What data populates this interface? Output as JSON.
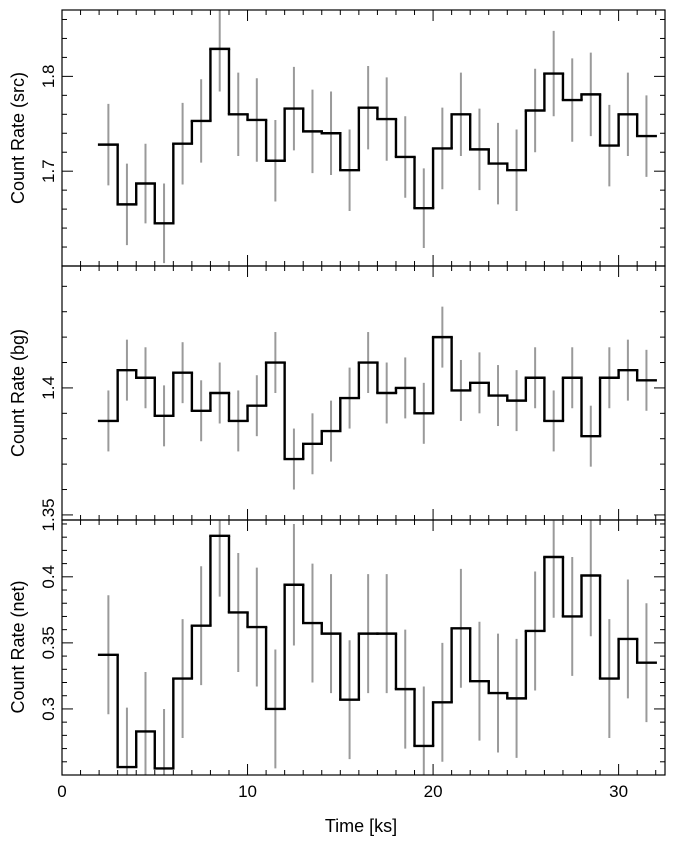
{
  "figure": {
    "xlabel": "Time [ks]"
  },
  "chart_data": [
    {
      "type": "line",
      "id": "src",
      "ylabel": "Count Rate (src)",
      "xlim": [
        0,
        32.5
      ],
      "ylim": [
        1.6,
        1.87
      ],
      "xticks": [
        0,
        10,
        20,
        30
      ],
      "yticks": [
        1.7,
        1.8
      ],
      "ytick_labels": [
        "1.7",
        "1.8"
      ],
      "bin_width": 1.0,
      "x": [
        2.5,
        3.5,
        4.5,
        5.5,
        6.5,
        7.5,
        8.5,
        9.5,
        10.5,
        11.5,
        12.5,
        13.5,
        14.5,
        15.5,
        16.5,
        17.5,
        18.5,
        19.5,
        20.5,
        21.5,
        22.5,
        23.5,
        24.5,
        25.5,
        26.5,
        27.5,
        28.5,
        29.5,
        30.5,
        31.5
      ],
      "y": [
        1.728,
        1.665,
        1.687,
        1.645,
        1.729,
        1.753,
        1.829,
        1.76,
        1.754,
        1.711,
        1.766,
        1.742,
        1.74,
        1.701,
        1.767,
        1.755,
        1.715,
        1.661,
        1.724,
        1.76,
        1.723,
        1.708,
        1.701,
        1.764,
        1.803,
        1.775,
        1.781,
        1.727,
        1.76,
        1.737
      ],
      "err": [
        0.043,
        0.043,
        0.042,
        0.042,
        0.043,
        0.044,
        0.045,
        0.044,
        0.044,
        0.043,
        0.044,
        0.044,
        0.044,
        0.043,
        0.044,
        0.044,
        0.043,
        0.042,
        0.043,
        0.044,
        0.043,
        0.043,
        0.043,
        0.044,
        0.045,
        0.044,
        0.044,
        0.043,
        0.044,
        0.043
      ]
    },
    {
      "type": "line",
      "id": "bg",
      "ylabel": "Count Rate (bg)",
      "xlim": [
        0,
        32.5
      ],
      "ylim": [
        1.348,
        1.448
      ],
      "xticks": [
        0,
        10,
        20,
        30
      ],
      "yticks": [
        1.35,
        1.4
      ],
      "ytick_labels": [
        "1.35",
        "1.4"
      ],
      "bin_width": 1.0,
      "x": [
        2.5,
        3.5,
        4.5,
        5.5,
        6.5,
        7.5,
        8.5,
        9.5,
        10.5,
        11.5,
        12.5,
        13.5,
        14.5,
        15.5,
        16.5,
        17.5,
        18.5,
        19.5,
        20.5,
        21.5,
        22.5,
        23.5,
        24.5,
        25.5,
        26.5,
        27.5,
        28.5,
        29.5,
        30.5,
        31.5
      ],
      "y": [
        1.387,
        1.407,
        1.404,
        1.389,
        1.406,
        1.391,
        1.398,
        1.387,
        1.393,
        1.41,
        1.372,
        1.378,
        1.383,
        1.396,
        1.41,
        1.398,
        1.4,
        1.39,
        1.42,
        1.399,
        1.402,
        1.397,
        1.395,
        1.404,
        1.387,
        1.404,
        1.381,
        1.404,
        1.407,
        1.403
      ],
      "err": [
        0.012,
        0.012,
        0.012,
        0.012,
        0.012,
        0.012,
        0.012,
        0.012,
        0.012,
        0.012,
        0.012,
        0.012,
        0.012,
        0.012,
        0.012,
        0.012,
        0.012,
        0.012,
        0.012,
        0.012,
        0.012,
        0.012,
        0.012,
        0.012,
        0.012,
        0.012,
        0.012,
        0.012,
        0.012,
        0.012
      ]
    },
    {
      "type": "line",
      "id": "net",
      "ylabel": "Count Rate (net)",
      "xlim": [
        0,
        32.5
      ],
      "ylim": [
        0.25,
        0.443
      ],
      "xticks": [
        0,
        10,
        20,
        30
      ],
      "xtick_labels": [
        "0",
        "10",
        "20",
        "30"
      ],
      "yticks": [
        0.3,
        0.35,
        0.4
      ],
      "ytick_labels": [
        "0.3",
        "0.35",
        "0.4"
      ],
      "bin_width": 1.0,
      "x": [
        2.5,
        3.5,
        4.5,
        5.5,
        6.5,
        7.5,
        8.5,
        9.5,
        10.5,
        11.5,
        12.5,
        13.5,
        14.5,
        15.5,
        16.5,
        17.5,
        18.5,
        19.5,
        20.5,
        21.5,
        22.5,
        23.5,
        24.5,
        25.5,
        26.5,
        27.5,
        28.5,
        29.5,
        30.5,
        31.5
      ],
      "y": [
        0.341,
        0.256,
        0.283,
        0.255,
        0.323,
        0.363,
        0.431,
        0.373,
        0.362,
        0.3,
        0.394,
        0.365,
        0.357,
        0.307,
        0.357,
        0.357,
        0.315,
        0.272,
        0.305,
        0.361,
        0.321,
        0.312,
        0.308,
        0.359,
        0.415,
        0.37,
        0.401,
        0.323,
        0.353,
        0.335
      ],
      "err": [
        0.045,
        0.045,
        0.045,
        0.045,
        0.045,
        0.045,
        0.046,
        0.045,
        0.045,
        0.045,
        0.046,
        0.045,
        0.045,
        0.045,
        0.045,
        0.045,
        0.045,
        0.045,
        0.045,
        0.045,
        0.045,
        0.045,
        0.045,
        0.045,
        0.046,
        0.045,
        0.046,
        0.045,
        0.045,
        0.045
      ]
    }
  ],
  "style": {
    "step_color": "#000000",
    "errorbar_color": "#9a9a9a",
    "frame_color": "#000000",
    "background": "#ffffff"
  }
}
